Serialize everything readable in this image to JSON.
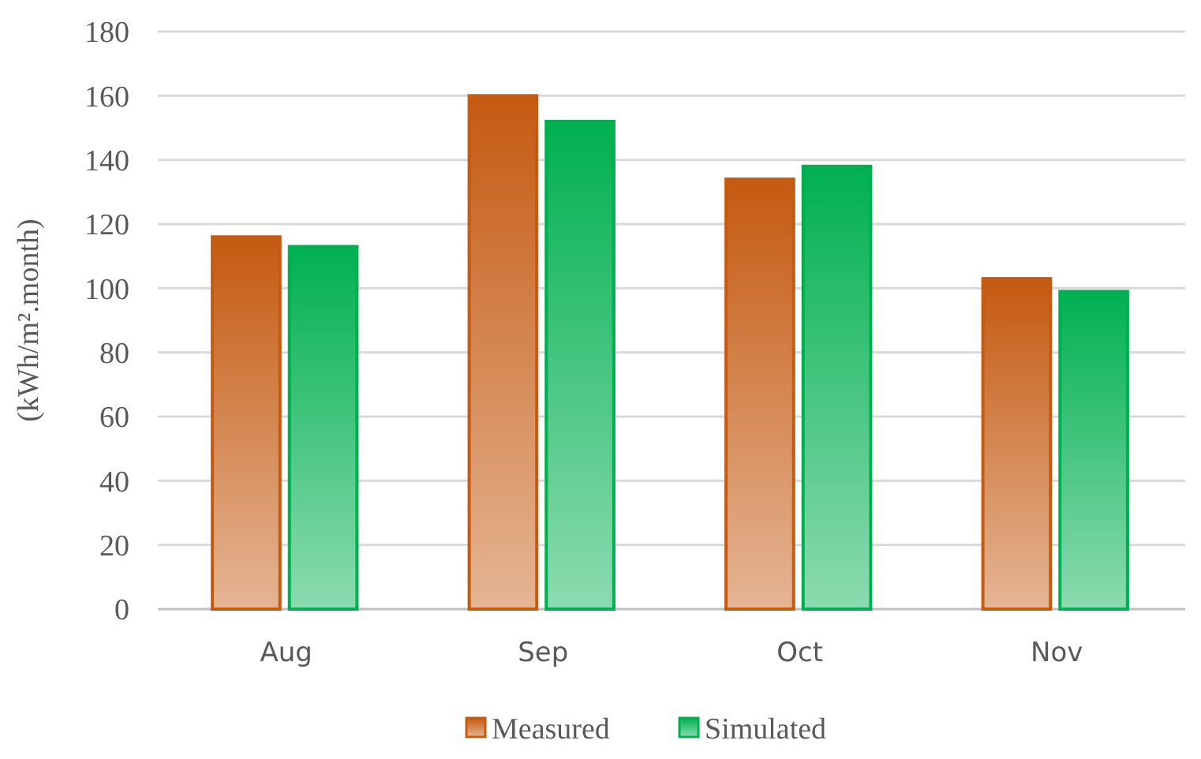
{
  "chart_data": {
    "type": "bar",
    "ylabel": "(kWh/m².month)",
    "categories": [
      "Aug",
      "Sep",
      "Oct",
      "Nov"
    ],
    "series": [
      {
        "name": "Measured",
        "color": "#c55a11",
        "values": [
          116,
          160,
          134,
          103
        ]
      },
      {
        "name": "Simulated",
        "color": "#00b050",
        "values": [
          113,
          152,
          138,
          99
        ]
      }
    ],
    "ylim": [
      0,
      180
    ],
    "yticks": [
      0,
      20,
      40,
      60,
      80,
      100,
      120,
      140,
      160,
      180
    ],
    "grid": "y",
    "legend": "bottom"
  }
}
